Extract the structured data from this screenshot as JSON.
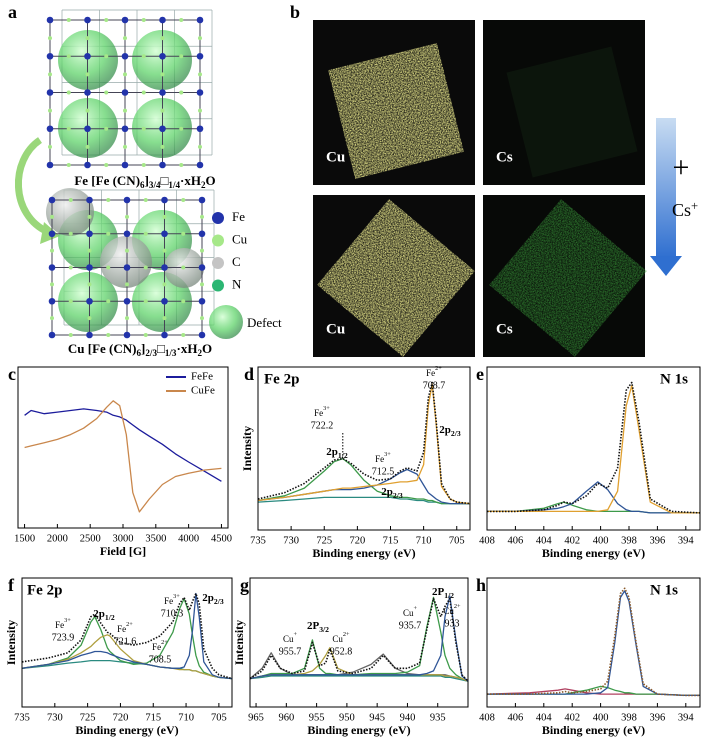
{
  "panel_a": {
    "label": "a",
    "formula_top": [
      {
        "text": "Fe [Fe (CN)",
        "sub": "6"
      },
      {
        "text": "]",
        "sub": "3/4"
      },
      {
        "text": "□",
        "sub": "1/4"
      },
      {
        "text": "·xH",
        "sub": "2"
      },
      {
        "text": "O"
      }
    ],
    "formula_bottom": [
      {
        "text": "Cu [Fe (CN)",
        "sub": "6"
      },
      {
        "text": "]",
        "sub": "2/3"
      },
      {
        "text": "□",
        "sub": "1/3"
      },
      {
        "text": "·xH",
        "sub": "2"
      },
      {
        "text": "O"
      }
    ],
    "legend": [
      "Fe",
      "Cu",
      "C",
      "N",
      "Defect"
    ]
  },
  "panel_b": {
    "label": "b",
    "images": [
      "Cu",
      "Cs",
      "Cu",
      "Cs"
    ],
    "plus": "+",
    "ion": {
      "text": "Cs",
      "sup": "+"
    }
  },
  "chart_data": [
    {
      "type": "line",
      "panel": "c",
      "xlabel": "Field [G]",
      "legend": "upper right",
      "x": [
        1500,
        1600,
        1800,
        2000,
        2200,
        2400,
        2600,
        2750,
        2850,
        2950,
        3050,
        3150,
        3250,
        3400,
        3600,
        3800,
        4000,
        4250,
        4500
      ],
      "xlim": [
        1400,
        4600
      ],
      "xticks": [
        1500,
        2000,
        2500,
        3000,
        3500,
        4000,
        4500
      ],
      "ylim": [
        0,
        100
      ],
      "series": [
        {
          "name": "FeFe",
          "color": "#1c1c9c",
          "values": [
            70,
            73,
            71,
            72,
            73,
            74,
            73,
            72,
            70,
            69,
            67,
            64,
            61,
            57,
            52,
            46,
            41,
            35,
            29
          ]
        },
        {
          "name": "CuFe",
          "color": "#c9874c",
          "values": [
            50,
            51,
            53,
            55,
            58,
            62,
            68,
            75,
            79,
            76,
            58,
            22,
            10,
            18,
            27,
            32,
            34,
            36,
            37
          ]
        }
      ]
    },
    {
      "type": "line",
      "panel": "d",
      "title": "Fe 2p",
      "xlabel": "Binding energy (eV)",
      "ylabel": "Intensity",
      "x": [
        735,
        731,
        728,
        725,
        723.5,
        722.2,
        721,
        719,
        717,
        715,
        713.5,
        712.5,
        711,
        710,
        709.3,
        708.7,
        708.1,
        707.3,
        706,
        705,
        703
      ],
      "xlim": [
        735,
        703
      ],
      "xticks": [
        735,
        730,
        725,
        720,
        715,
        710,
        705
      ],
      "ylim": [
        0,
        105
      ],
      "series": [
        {
          "color": "#2a8a80",
          "values": [
            18,
            19,
            20,
            21,
            21,
            21,
            21,
            21,
            21,
            21,
            20,
            20,
            19,
            19,
            18,
            18,
            18,
            17,
            17,
            17,
            17
          ]
        },
        {
          "color": "#3d9a4a",
          "values": [
            19,
            22,
            27,
            38,
            44,
            46,
            42,
            32,
            25,
            22,
            21,
            21,
            20,
            20,
            19,
            19,
            18,
            17,
            17,
            17,
            17
          ]
        },
        {
          "color": "#2f5597",
          "values": [
            19,
            21,
            23,
            25,
            26,
            26,
            26,
            27,
            29,
            33,
            37,
            39,
            36,
            29,
            24,
            22,
            20,
            18,
            17,
            17,
            17
          ]
        },
        {
          "color": "#e0a030",
          "values": [
            19,
            21,
            23,
            25,
            26,
            27,
            27,
            28,
            29,
            30,
            31,
            31,
            32,
            42,
            80,
            94,
            68,
            28,
            20,
            18,
            17
          ]
        },
        {
          "color": "#111111",
          "dotted": true,
          "values": [
            20,
            24,
            30,
            40,
            45,
            46,
            43,
            36,
            32,
            33,
            38,
            40,
            38,
            50,
            85,
            95,
            70,
            30,
            20,
            18,
            17
          ]
        }
      ],
      "peaks": [
        {
          "ion": "Fe",
          "charge": "3+",
          "energy": 722.2
        },
        {
          "ion": "Fe",
          "charge": "3+",
          "energy": 712.5
        },
        {
          "ion": "Fe",
          "charge": "2+",
          "energy": 708.7
        }
      ],
      "orbitals": [
        {
          "text": "2p",
          "sub": "1/2"
        },
        {
          "text": "2p",
          "sub": "2/3"
        },
        {
          "text": "2p",
          "sub": "2/3"
        }
      ]
    },
    {
      "type": "line",
      "panel": "e",
      "title": "N 1s",
      "xlabel": "Binding energy (eV)",
      "x": [
        408,
        406,
        404,
        403,
        402.6,
        402,
        401,
        400.2,
        399.5,
        398.8,
        398.2,
        397.8,
        397.3,
        396.5,
        395,
        393
      ],
      "xlim": [
        408,
        393
      ],
      "xticks": [
        408,
        406,
        404,
        402,
        400,
        398,
        396,
        394
      ],
      "ylim": [
        0,
        105
      ],
      "series": [
        {
          "color": "#3d9a4a",
          "values": [
            12,
            12,
            14,
            17,
            18,
            16,
            13,
            12,
            12,
            12,
            12,
            12,
            12,
            11,
            11,
            11
          ]
        },
        {
          "color": "#2f5597",
          "values": [
            12,
            12,
            13,
            14,
            15,
            17,
            25,
            31,
            26,
            17,
            13,
            12,
            12,
            11,
            11,
            11
          ]
        },
        {
          "color": "#e0a030",
          "values": [
            12,
            12,
            12,
            12,
            12,
            12,
            12,
            12,
            13,
            25,
            80,
            93,
            65,
            18,
            11,
            11
          ]
        },
        {
          "color": "#111111",
          "dotted": true,
          "values": [
            12,
            12,
            13,
            16,
            18,
            17,
            22,
            30,
            27,
            40,
            90,
            95,
            70,
            20,
            12,
            11
          ]
        }
      ]
    },
    {
      "type": "line",
      "panel": "f",
      "title": "Fe 2p",
      "xlabel": "Binding energy (eV)",
      "ylabel": "Intensity",
      "x": [
        735,
        731,
        728,
        726,
        724.5,
        723.9,
        723,
        722,
        721.6,
        720,
        718,
        716,
        714,
        712,
        711,
        710.3,
        709.5,
        709,
        708.5,
        708,
        707.3,
        706,
        705,
        703
      ],
      "xlim": [
        735,
        703
      ],
      "xticks": [
        735,
        730,
        725,
        720,
        715,
        710,
        705
      ],
      "ylim": [
        0,
        100
      ],
      "series": [
        {
          "color": "#2a8a80",
          "values": [
            30,
            32,
            34,
            35,
            36,
            36,
            36,
            36,
            36,
            35,
            34,
            33,
            31,
            30,
            30,
            29,
            29,
            28,
            28,
            27,
            26,
            24,
            23,
            22
          ]
        },
        {
          "color": "#3d9a4a",
          "values": [
            30,
            33,
            38,
            48,
            66,
            70,
            60,
            46,
            43,
            36,
            33,
            34,
            40,
            58,
            76,
            84,
            72,
            55,
            40,
            32,
            27,
            24,
            23,
            22
          ]
        },
        {
          "color": "#b0a040",
          "values": [
            30,
            33,
            37,
            42,
            47,
            50,
            54,
            56,
            55,
            45,
            36,
            33,
            31,
            30,
            29,
            29,
            29,
            28,
            28,
            27,
            26,
            24,
            23,
            22
          ]
        },
        {
          "color": "#2f5597",
          "values": [
            30,
            33,
            36,
            40,
            42,
            43,
            43,
            42,
            41,
            38,
            35,
            33,
            31,
            30,
            30,
            31,
            40,
            60,
            88,
            70,
            35,
            25,
            23,
            22
          ]
        },
        {
          "color": "#111111",
          "dotted": true,
          "values": [
            35,
            38,
            42,
            52,
            70,
            72,
            65,
            58,
            57,
            50,
            48,
            50,
            55,
            66,
            80,
            85,
            75,
            82,
            88,
            80,
            45,
            30,
            25,
            22
          ]
        }
      ],
      "peaks": [
        {
          "ion": "Fe",
          "charge": "3+",
          "energy": 723.9
        },
        {
          "ion": "Fe",
          "charge": "2+",
          "energy": 721.6
        },
        {
          "ion": "Fe",
          "charge": "3+",
          "energy": 710.3
        },
        {
          "ion": "Fe",
          "charge": "2+",
          "energy": 708.5
        }
      ],
      "orbitals": [
        {
          "text": "2p",
          "sub": "1/2"
        },
        {
          "text": "2p",
          "sub": "2/3"
        }
      ]
    },
    {
      "type": "line",
      "panel": "g",
      "xlabel": "Binding energy (eV)",
      "ylabel": "Intensity",
      "x": [
        966,
        964,
        962.5,
        961,
        959,
        957,
        955.7,
        954.5,
        953.5,
        952.8,
        951.5,
        949,
        946,
        944,
        942,
        940,
        938,
        936.8,
        935.7,
        934.5,
        933.8,
        933,
        932,
        931,
        930
      ],
      "xlim": [
        966,
        930
      ],
      "xticks": [
        965,
        960,
        955,
        950,
        945,
        940,
        935
      ],
      "ylim": [
        0,
        100
      ],
      "series": [
        {
          "color": "#2a8a80",
          "values": [
            22,
            23,
            24,
            24,
            24,
            24,
            24,
            24,
            24,
            24,
            24,
            24,
            24,
            24,
            24,
            24,
            24,
            24,
            24,
            24,
            23,
            23,
            22,
            21,
            20
          ]
        },
        {
          "color": "#666666",
          "values": [
            22,
            30,
            42,
            30,
            25,
            25,
            25,
            25,
            25,
            25,
            25,
            27,
            33,
            41,
            30,
            26,
            25,
            25,
            25,
            25,
            25,
            24,
            23,
            22,
            20
          ]
        },
        {
          "color": "#3d9a4a",
          "values": [
            22,
            24,
            26,
            26,
            26,
            30,
            52,
            30,
            26,
            26,
            25,
            25,
            26,
            26,
            26,
            27,
            32,
            62,
            85,
            58,
            40,
            30,
            25,
            22,
            20
          ]
        },
        {
          "color": "#b0a040",
          "values": [
            22,
            24,
            25,
            25,
            25,
            26,
            28,
            33,
            40,
            46,
            30,
            25,
            25,
            25,
            25,
            25,
            25,
            25,
            25,
            25,
            24,
            24,
            23,
            22,
            20
          ]
        },
        {
          "color": "#2f5597",
          "values": [
            22,
            24,
            25,
            25,
            25,
            25,
            25,
            25,
            25,
            25,
            25,
            25,
            25,
            25,
            25,
            25,
            25,
            26,
            28,
            40,
            70,
            86,
            52,
            24,
            20
          ]
        },
        {
          "color": "#111111",
          "dotted": true,
          "values": [
            22,
            28,
            40,
            30,
            26,
            28,
            50,
            32,
            34,
            45,
            28,
            26,
            30,
            40,
            30,
            30,
            34,
            60,
            84,
            70,
            78,
            84,
            50,
            25,
            20
          ]
        }
      ],
      "peaks": [
        {
          "ion": "Cu",
          "charge": "+",
          "energy": 955.7
        },
        {
          "ion": "Cu",
          "charge": "2+",
          "energy": 952.8
        },
        {
          "ion": "Cu",
          "charge": "+",
          "energy": 935.7
        },
        {
          "ion": "Cu",
          "charge": "2+",
          "energy": 933
        }
      ],
      "orbitals": [
        {
          "text": "2P",
          "sub": "3/2"
        },
        {
          "text": "2P",
          "sub": "1/2"
        }
      ]
    },
    {
      "type": "line",
      "panel": "h",
      "title": "N 1s",
      "xlabel": "Binding energy (eV)",
      "x": [
        408,
        405,
        403,
        402.5,
        402,
        401,
        400,
        399.5,
        399,
        398.6,
        398.3,
        398,
        397.5,
        397,
        396,
        394,
        393
      ],
      "xlim": [
        408,
        393
      ],
      "xticks": [
        408,
        406,
        404,
        402,
        400,
        398,
        396,
        394
      ],
      "ylim": [
        0,
        100
      ],
      "series": [
        {
          "color": "#b04060",
          "values": [
            10,
            11,
            13,
            14,
            13,
            11,
            10,
            10,
            10,
            10,
            10,
            10,
            10,
            10,
            10,
            9,
            9
          ]
        },
        {
          "color": "#3d9a4a",
          "values": [
            10,
            10,
            10,
            10,
            11,
            13,
            16,
            15,
            13,
            12,
            11,
            11,
            10,
            10,
            10,
            9,
            9
          ]
        },
        {
          "color": "#2f5597",
          "values": [
            10,
            10,
            10,
            10,
            10,
            10,
            11,
            15,
            50,
            85,
            90,
            82,
            48,
            16,
            10,
            9,
            9
          ]
        },
        {
          "color": "#8a5a2a",
          "dotted": true,
          "values": [
            10,
            10,
            11,
            12,
            11,
            12,
            14,
            20,
            55,
            88,
            92,
            85,
            50,
            18,
            10,
            9,
            9
          ]
        }
      ]
    }
  ]
}
